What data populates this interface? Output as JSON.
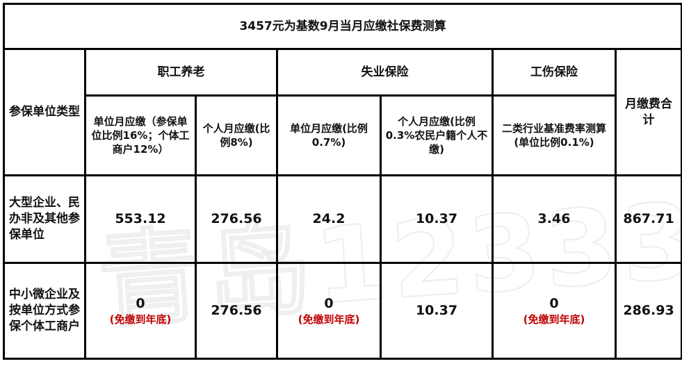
{
  "title": "3457元为基数9月当月应缴社保费测算",
  "headers": {
    "unit_type": "参保单位类型",
    "pension": "职工养老",
    "unemployment": "失业保险",
    "injury": "工伤保险",
    "total": "月缴费合计",
    "pension_unit": "单位月应缴（参保单位比例16%；个体工商户12%）",
    "pension_personal": "个人月应缴(比例8%)",
    "unemp_unit": "单位月应缴(比例0.7%)",
    "unemp_personal": "个人月应缴(比例0.3%农民户籍个人不缴)",
    "injury_unit": "二类行业基准费率测算(单位比例0.1%)"
  },
  "rows": [
    {
      "type": "大型企业、民办非及其他参保单位",
      "pension_unit": "553.12",
      "pension_unit_note": "",
      "pension_personal": "276.56",
      "unemp_unit": "24.2",
      "unemp_unit_note": "",
      "unemp_personal": "10.37",
      "injury_unit": "3.46",
      "injury_unit_note": "",
      "total": "867.71"
    },
    {
      "type": "中小微企业及按单位方式参保个体工商户",
      "pension_unit": "0",
      "pension_unit_note": "(免缴到年底)",
      "pension_personal": "276.56",
      "unemp_unit": "0",
      "unemp_unit_note": "(免缴到年底)",
      "unemp_personal": "10.37",
      "injury_unit": "0",
      "injury_unit_note": "(免缴到年底)",
      "total": "286.93"
    }
  ],
  "watermark": "青岛12333",
  "colors": {
    "note_red": "#c00000"
  }
}
